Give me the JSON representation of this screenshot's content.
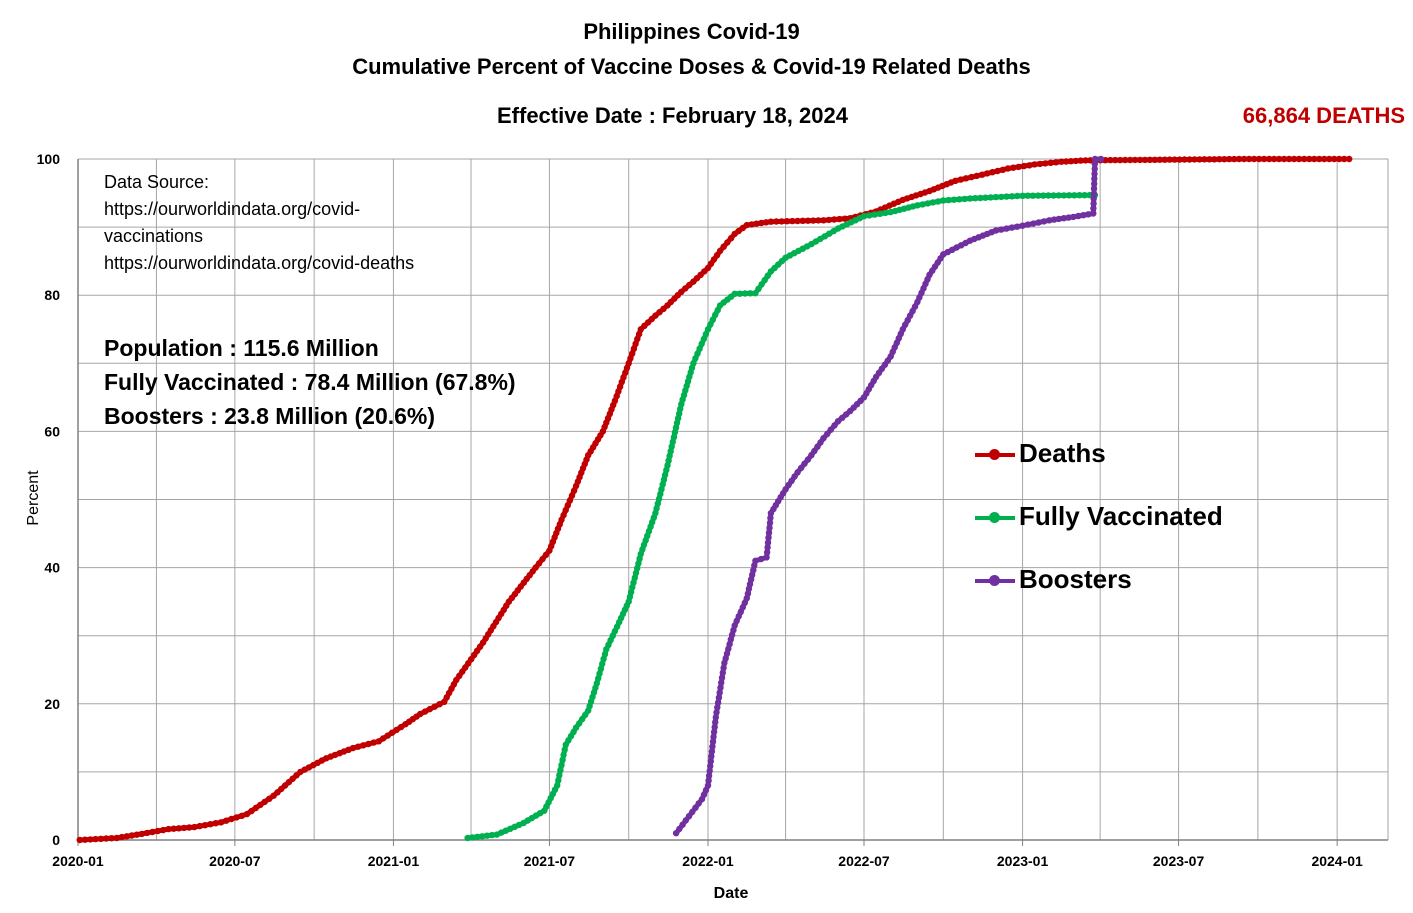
{
  "header": {
    "title_line1": "Philippines Covid-19",
    "title_line2": "Cumulative Percent of Vaccine Doses & Covid-19 Related Deaths",
    "effective_date": "Effective Date : February 18, 2024",
    "deaths_count": "66,864 DEATHS"
  },
  "source": {
    "label": "Data Source:",
    "line1": "https://ourworldindata.org/covid-",
    "line2": "vaccinations",
    "line3": "https://ourworldindata.org/covid-deaths"
  },
  "stats": {
    "population": "Population : 115.6 Million",
    "fully_vaccinated": "Fully Vaccinated : 78.4 Million (67.8%)",
    "boosters": "Boosters : 23.8 Million (20.6%)"
  },
  "chart_data": {
    "type": "line",
    "xlabel": "Date",
    "ylabel": "Percent",
    "xlim": [
      "2020-01-01",
      "2024-02-29"
    ],
    "ylim": [
      0,
      100
    ],
    "y_ticks": [
      0,
      20,
      40,
      60,
      80,
      100
    ],
    "x_ticks": [
      "2020-01",
      "2020-07",
      "2021-01",
      "2021-07",
      "2022-01",
      "2022-07",
      "2023-01",
      "2023-07",
      "2024-01"
    ],
    "grid": true,
    "legend_position": "right",
    "series": [
      {
        "name": "Deaths",
        "color": "#C00000",
        "points": [
          [
            "2020-01-03",
            0
          ],
          [
            "2020-02-15",
            0.3
          ],
          [
            "2020-03-15",
            0.9
          ],
          [
            "2020-04-15",
            1.6
          ],
          [
            "2020-05-15",
            1.9
          ],
          [
            "2020-06-15",
            2.6
          ],
          [
            "2020-07-15",
            3.8
          ],
          [
            "2020-08-15",
            6.5
          ],
          [
            "2020-09-15",
            10.0
          ],
          [
            "2020-10-15",
            12.0
          ],
          [
            "2020-11-15",
            13.5
          ],
          [
            "2020-12-15",
            14.5
          ],
          [
            "2021-01-15",
            17.0
          ],
          [
            "2021-02-01",
            18.5
          ],
          [
            "2021-03-01",
            20.3
          ],
          [
            "2021-03-15",
            23.5
          ],
          [
            "2021-04-15",
            29.0
          ],
          [
            "2021-05-15",
            35.0
          ],
          [
            "2021-06-15",
            40.0
          ],
          [
            "2021-07-01",
            42.5
          ],
          [
            "2021-07-15",
            47.0
          ],
          [
            "2021-08-01",
            52.0
          ],
          [
            "2021-08-15",
            56.5
          ],
          [
            "2021-09-01",
            60.0
          ],
          [
            "2021-09-15",
            64.5
          ],
          [
            "2021-10-01",
            70.0
          ],
          [
            "2021-10-15",
            75.0
          ],
          [
            "2021-11-01",
            77.0
          ],
          [
            "2021-11-15",
            78.5
          ],
          [
            "2021-12-01",
            80.5
          ],
          [
            "2021-12-15",
            82.0
          ],
          [
            "2022-01-01",
            84.0
          ],
          [
            "2022-01-15",
            86.5
          ],
          [
            "2022-02-01",
            89.0
          ],
          [
            "2022-02-15",
            90.3
          ],
          [
            "2022-03-15",
            90.8
          ],
          [
            "2022-04-15",
            90.9
          ],
          [
            "2022-05-15",
            91.0
          ],
          [
            "2022-06-15",
            91.3
          ],
          [
            "2022-07-15",
            92.3
          ],
          [
            "2022-08-15",
            94.0
          ],
          [
            "2022-09-15",
            95.3
          ],
          [
            "2022-10-15",
            96.8
          ],
          [
            "2022-11-15",
            97.7
          ],
          [
            "2022-12-15",
            98.6
          ],
          [
            "2023-01-15",
            99.2
          ],
          [
            "2023-02-15",
            99.6
          ],
          [
            "2023-03-15",
            99.8
          ],
          [
            "2023-06-15",
            99.9
          ],
          [
            "2023-09-15",
            100.0
          ],
          [
            "2024-01-15",
            100.0
          ]
        ]
      },
      {
        "name": "Fully Vaccinated",
        "color": "#00B050",
        "points": [
          [
            "2021-03-28",
            0.3
          ],
          [
            "2021-05-01",
            0.8
          ],
          [
            "2021-06-01",
            2.5
          ],
          [
            "2021-06-25",
            4.3
          ],
          [
            "2021-07-10",
            8.0
          ],
          [
            "2021-07-20",
            14.0
          ],
          [
            "2021-08-01",
            16.5
          ],
          [
            "2021-08-15",
            19.0
          ],
          [
            "2021-08-25",
            23.0
          ],
          [
            "2021-09-05",
            28.0
          ],
          [
            "2021-09-20",
            32.0
          ],
          [
            "2021-10-01",
            35.0
          ],
          [
            "2021-10-15",
            42.0
          ],
          [
            "2021-11-01",
            48.0
          ],
          [
            "2021-11-15",
            55.0
          ],
          [
            "2021-12-01",
            64.0
          ],
          [
            "2021-12-15",
            70.0
          ],
          [
            "2022-01-01",
            75.0
          ],
          [
            "2022-01-15",
            78.5
          ],
          [
            "2022-02-01",
            80.2
          ],
          [
            "2022-02-25",
            80.3
          ],
          [
            "2022-03-15",
            83.5
          ],
          [
            "2022-04-01",
            85.5
          ],
          [
            "2022-05-01",
            87.5
          ],
          [
            "2022-06-01",
            89.8
          ],
          [
            "2022-07-01",
            91.6
          ],
          [
            "2022-08-01",
            92.2
          ],
          [
            "2022-09-01",
            93.2
          ],
          [
            "2022-10-01",
            93.9
          ],
          [
            "2022-11-01",
            94.2
          ],
          [
            "2022-12-01",
            94.4
          ],
          [
            "2023-01-01",
            94.6
          ],
          [
            "2023-03-26",
            94.7
          ]
        ]
      },
      {
        "name": "Boosters",
        "color": "#7030A0",
        "points": [
          [
            "2021-11-25",
            1.0
          ],
          [
            "2021-12-10",
            3.5
          ],
          [
            "2021-12-25",
            6.0
          ],
          [
            "2022-01-01",
            8.0
          ],
          [
            "2022-01-10",
            18.0
          ],
          [
            "2022-01-20",
            26.0
          ],
          [
            "2022-02-01",
            31.5
          ],
          [
            "2022-02-15",
            35.5
          ],
          [
            "2022-02-25",
            41.0
          ],
          [
            "2022-03-10",
            41.5
          ],
          [
            "2022-03-15",
            48.0
          ],
          [
            "2022-04-01",
            51.5
          ],
          [
            "2022-04-15",
            54.0
          ],
          [
            "2022-05-01",
            56.5
          ],
          [
            "2022-05-15",
            59.0
          ],
          [
            "2022-06-01",
            61.5
          ],
          [
            "2022-06-15",
            63.0
          ],
          [
            "2022-07-01",
            65.0
          ],
          [
            "2022-07-15",
            68.0
          ],
          [
            "2022-08-01",
            71.0
          ],
          [
            "2022-08-15",
            75.0
          ],
          [
            "2022-09-01",
            79.0
          ],
          [
            "2022-09-15",
            83.0
          ],
          [
            "2022-10-01",
            86.0
          ],
          [
            "2022-11-01",
            88.0
          ],
          [
            "2022-12-01",
            89.5
          ],
          [
            "2023-01-01",
            90.2
          ],
          [
            "2023-02-01",
            91.0
          ],
          [
            "2023-03-01",
            91.5
          ],
          [
            "2023-03-24",
            92.0
          ],
          [
            "2023-03-26",
            100.0
          ],
          [
            "2023-04-02",
            100.0
          ]
        ]
      }
    ]
  }
}
